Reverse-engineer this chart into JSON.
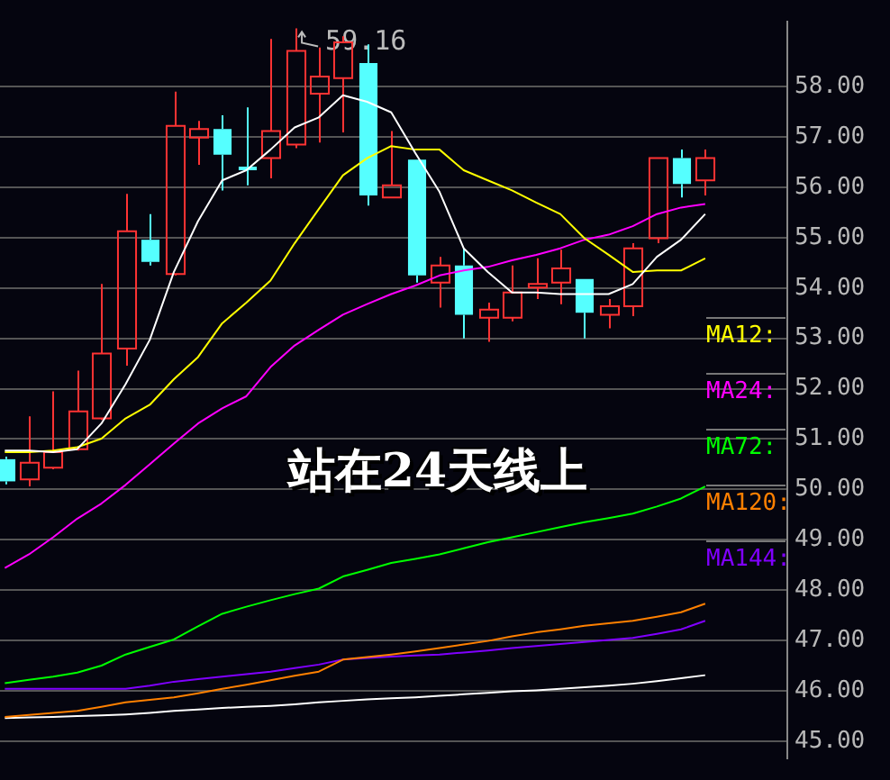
{
  "chart_data": {
    "type": "candlestick",
    "categories": [
      null,
      null,
      null,
      null,
      null,
      null,
      null,
      null,
      null,
      null,
      null,
      null,
      null,
      null,
      null,
      null,
      null,
      null,
      null,
      null,
      null,
      null,
      null,
      null,
      null,
      null,
      null,
      null,
      null,
      null
    ],
    "ohlc": [
      [
        50.6,
        50.65,
        50.1,
        50.16
      ],
      [
        50.2,
        51.45,
        50.06,
        50.53
      ],
      [
        50.43,
        51.95,
        50.4,
        50.74
      ],
      [
        50.8,
        52.36,
        50.77,
        51.55
      ],
      [
        51.41,
        54.08,
        51.38,
        52.7
      ],
      [
        52.8,
        55.87,
        52.46,
        55.13
      ],
      [
        54.96,
        55.47,
        54.45,
        54.52
      ],
      [
        54.28,
        57.9,
        54.25,
        57.22
      ],
      [
        56.99,
        57.32,
        56.45,
        57.16
      ],
      [
        57.16,
        57.43,
        55.94,
        56.65
      ],
      [
        56.41,
        57.59,
        56.04,
        56.34
      ],
      [
        56.58,
        58.95,
        56.18,
        57.12
      ],
      [
        56.85,
        59.16,
        56.78,
        58.71
      ],
      [
        57.86,
        58.78,
        56.89,
        58.2
      ],
      [
        58.17,
        59.0,
        57.09,
        58.88
      ],
      [
        58.47,
        58.84,
        55.64,
        55.84
      ],
      [
        55.8,
        57.12,
        55.8,
        56.04
      ],
      [
        56.55,
        56.55,
        54.11,
        54.25
      ],
      [
        54.11,
        54.62,
        53.61,
        54.45
      ],
      [
        54.45,
        54.79,
        53.0,
        53.47
      ],
      [
        53.41,
        53.71,
        52.93,
        53.57
      ],
      [
        53.41,
        54.45,
        53.34,
        53.91
      ],
      [
        54.01,
        54.59,
        53.78,
        54.08
      ],
      [
        54.11,
        54.76,
        53.68,
        54.39
      ],
      [
        54.18,
        54.18,
        53.0,
        53.51
      ],
      [
        53.47,
        53.78,
        53.2,
        53.64
      ],
      [
        53.64,
        54.89,
        53.44,
        54.79
      ],
      [
        54.99,
        56.58,
        54.89,
        56.58
      ],
      [
        56.58,
        56.75,
        55.8,
        56.07
      ],
      [
        56.14,
        56.75,
        55.84,
        56.58
      ]
    ],
    "colors": [
      "#55ffff",
      "#ff3333",
      "#ff3333",
      "#ff3333",
      "#ff3333",
      "#ff3333",
      "#55ffff",
      "#ff3333",
      "#ff3333",
      "#55ffff",
      "#55ffff",
      "#ff3333",
      "#ff3333",
      "#ff3333",
      "#ff3333",
      "#55ffff",
      "#ff3333",
      "#55ffff",
      "#ff3333",
      "#55ffff",
      "#ff3333",
      "#ff3333",
      "#ff3333",
      "#ff3333",
      "#55ffff",
      "#ff3333",
      "#ff3333",
      "#ff3333",
      "#55ffff",
      "#ff3333"
    ],
    "series": [
      {
        "type": "line",
        "color": "#ffffff",
        "values": [
          50.77,
          50.77,
          50.74,
          50.8,
          51.31,
          52.09,
          52.97,
          54.32,
          55.33,
          56.14,
          56.34,
          56.75,
          57.19,
          57.39,
          57.83,
          57.7,
          57.49,
          56.68,
          55.91,
          54.79,
          54.32,
          53.91,
          53.91,
          53.88,
          53.88,
          53.88,
          54.08,
          54.62,
          54.96,
          55.47
        ]
      },
      {
        "type": "line",
        "name": "MA12:",
        "color": "#ffff00",
        "values": [
          50.74,
          50.74,
          50.77,
          50.84,
          51.01,
          51.41,
          51.68,
          52.19,
          52.63,
          53.3,
          53.71,
          54.15,
          54.89,
          55.57,
          56.24,
          56.58,
          56.82,
          56.75,
          56.75,
          56.34,
          56.14,
          55.94,
          55.7,
          55.47,
          54.99,
          54.66,
          54.32,
          54.35,
          54.35,
          54.59
        ]
      },
      {
        "type": "line",
        "name": "MA24:",
        "color": "#ff00ff",
        "values": [
          48.44,
          48.71,
          49.05,
          49.42,
          49.72,
          50.09,
          50.5,
          50.91,
          51.31,
          51.61,
          51.85,
          52.43,
          52.86,
          53.17,
          53.47,
          53.68,
          53.88,
          54.05,
          54.25,
          54.35,
          54.42,
          54.55,
          54.66,
          54.79,
          54.96,
          55.06,
          55.23,
          55.47,
          55.6,
          55.67
        ]
      },
      {
        "type": "line",
        "name": "MA72:",
        "color": "#00ff00",
        "values": [
          46.15,
          46.22,
          46.28,
          46.36,
          46.5,
          46.72,
          46.87,
          47.02,
          47.28,
          47.53,
          47.67,
          47.8,
          47.92,
          48.03,
          48.27,
          48.4,
          48.54,
          48.62,
          48.71,
          48.83,
          48.95,
          49.05,
          49.15,
          49.25,
          49.35,
          49.43,
          49.52,
          49.66,
          49.82,
          50.06
        ]
      },
      {
        "type": "line",
        "name": "MA120:",
        "color": "#ff8000",
        "values": [
          45.48,
          45.52,
          45.56,
          45.6,
          45.68,
          45.77,
          45.82,
          45.87,
          45.95,
          46.04,
          46.12,
          46.21,
          46.3,
          46.38,
          46.62,
          46.67,
          46.72,
          46.78,
          46.85,
          46.92,
          46.99,
          47.08,
          47.16,
          47.22,
          47.29,
          47.34,
          47.39,
          47.47,
          47.56,
          47.73
        ]
      },
      {
        "type": "line",
        "name": "MA144:",
        "color": "#8000ff",
        "values": [
          46.04,
          46.04,
          46.04,
          46.04,
          46.04,
          46.04,
          46.1,
          46.18,
          46.23,
          46.28,
          46.33,
          46.38,
          46.45,
          46.52,
          46.62,
          46.65,
          46.68,
          46.7,
          46.72,
          46.76,
          46.8,
          46.85,
          46.89,
          46.93,
          46.97,
          47.01,
          47.05,
          47.13,
          47.22,
          47.39
        ]
      },
      {
        "type": "line",
        "color": "#ffffff",
        "values": [
          45.46,
          45.47,
          45.48,
          45.5,
          45.51,
          45.53,
          45.56,
          45.6,
          45.63,
          45.66,
          45.68,
          45.7,
          45.73,
          45.77,
          45.8,
          45.83,
          45.85,
          45.87,
          45.9,
          45.93,
          45.96,
          45.99,
          46.01,
          46.04,
          46.07,
          46.1,
          46.14,
          46.19,
          46.25,
          46.31
        ]
      }
    ],
    "ylim": [
      44.65,
      59.3
    ],
    "yticks": [
      {
        "value": 45,
        "label": "45.00"
      },
      {
        "value": 46,
        "label": "46.00"
      },
      {
        "value": 47,
        "label": "47.00"
      },
      {
        "value": 48,
        "label": "48.00"
      },
      {
        "value": 49,
        "label": "49.00"
      },
      {
        "value": 50,
        "label": "50.00"
      },
      {
        "value": 51,
        "label": "51.00"
      },
      {
        "value": 52,
        "label": "52.00"
      },
      {
        "value": 53,
        "label": "53.00"
      },
      {
        "value": 54,
        "label": "54.00"
      },
      {
        "value": 55,
        "label": "55.00"
      },
      {
        "value": 56,
        "label": "56.00"
      },
      {
        "value": 57,
        "label": "57.00"
      },
      {
        "value": 58,
        "label": "58.00"
      }
    ],
    "annotations": [
      "59.16",
      "站在24天线上"
    ],
    "grid": "y",
    "legend": "right",
    "tick_labels": "y",
    "marker": "none",
    "line_style": "solid"
  }
}
